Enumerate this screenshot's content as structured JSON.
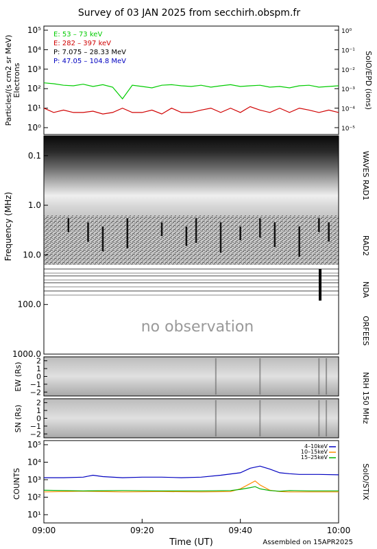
{
  "title": "Survey of 03 JAN 2025 from secchirh.obspm.fr",
  "footer": "Assembled on 15APR2025",
  "xaxis": {
    "label": "Time (UT)",
    "ticks": [
      "09:00",
      "09:20",
      "09:40",
      "10:00"
    ],
    "range": [
      "09:00",
      "10:00"
    ]
  },
  "panels": {
    "epd": {
      "ylabel_left": "Particles/(s cm2 sr MeV)",
      "ylabel_left2": "Electrons",
      "ylabel_right": "SolO/EPD (ions)",
      "left_ticks": [
        "10⁰",
        "10¹",
        "10²",
        "10³",
        "10⁴",
        "10⁵"
      ],
      "right_ticks": [
        "10⁻⁵",
        "10⁻⁴",
        "10⁻³",
        "10⁻²",
        "10⁻¹",
        "10⁰"
      ]
    },
    "radio": {
      "ylabel": "Frequency (MHz)",
      "ticks": [
        "0.1",
        "1.0",
        "10.0",
        "100.0",
        "1000.0"
      ],
      "no_obs": "no observation",
      "right_labels": [
        "WAVES RAD1",
        "RAD2",
        "NDA",
        "ORFEES"
      ]
    },
    "nrh": {
      "ew_label": "EW (Rs)",
      "sn_label": "SN (Rs)",
      "ticks": [
        "2",
        "1",
        "0",
        "−1",
        "−2"
      ],
      "right_label": "NRH 150 MHz"
    },
    "stix": {
      "ylabel": "COUNTS",
      "right_label": "SolO/STIX",
      "ticks": [
        "10¹",
        "10²",
        "10³",
        "10⁴",
        "10⁵"
      ]
    }
  },
  "chart_data": [
    {
      "type": "line",
      "title": "",
      "yscale": "log",
      "ylim": [
        1,
        100000
      ],
      "y2lim": [
        1e-05,
        1
      ],
      "series": [
        {
          "name": "E: 53 – 73 keV",
          "color": "#00cc00",
          "axis": "left",
          "x_minutes": [
            0,
            2,
            4,
            6,
            8,
            10,
            12,
            14,
            16,
            18,
            20,
            22,
            24,
            26,
            28,
            30,
            32,
            34,
            36,
            38,
            40,
            42,
            44,
            46,
            48,
            50,
            52,
            54,
            56,
            58,
            60
          ],
          "values": [
            200,
            180,
            150,
            140,
            170,
            130,
            160,
            120,
            30,
            150,
            130,
            110,
            150,
            160,
            140,
            130,
            150,
            120,
            140,
            160,
            130,
            140,
            150,
            120,
            130,
            110,
            140,
            150,
            120,
            130,
            140
          ]
        },
        {
          "name": "E: 282 – 397 keV",
          "color": "#d00000",
          "axis": "left",
          "x_minutes": [
            0,
            2,
            4,
            6,
            8,
            10,
            12,
            14,
            16,
            18,
            20,
            22,
            24,
            26,
            28,
            30,
            32,
            34,
            36,
            38,
            40,
            42,
            44,
            46,
            48,
            50,
            52,
            54,
            56,
            58,
            60
          ],
          "values": [
            10,
            6,
            8,
            6,
            6,
            7,
            5,
            6,
            10,
            6,
            6,
            8,
            5,
            10,
            6,
            6,
            8,
            10,
            6,
            10,
            6,
            12,
            8,
            6,
            10,
            6,
            10,
            8,
            6,
            8,
            6
          ]
        },
        {
          "name": "P: 7.075 – 28.33 MeV",
          "color": "#000000",
          "axis": "right",
          "x_minutes": [],
          "values": []
        },
        {
          "name": "P: 47.05 – 104.8 MeV",
          "color": "#0000c0",
          "axis": "right",
          "x_minutes": [],
          "values": []
        }
      ]
    },
    {
      "type": "heatmap",
      "ylabel": "Frequency (MHz)",
      "yscale": "log",
      "ylim": [
        0.04,
        1000
      ],
      "instruments": [
        {
          "name": "WAVES RAD1",
          "freq_range": [
            0.04,
            1.0
          ]
        },
        {
          "name": "RAD2",
          "freq_range": [
            1.0,
            16
          ]
        },
        {
          "name": "NDA",
          "freq_range": [
            16,
            80
          ]
        },
        {
          "name": "ORFEES",
          "freq_range": [
            140,
            1000
          ],
          "status": "no observation"
        }
      ]
    },
    {
      "type": "heatmap",
      "title": "NRH 150 MHz",
      "panels": [
        {
          "ylabel": "EW (Rs)",
          "ylim": [
            -2.5,
            2.5
          ]
        },
        {
          "ylabel": "SN (Rs)",
          "ylim": [
            -2.5,
            2.5
          ]
        }
      ]
    },
    {
      "type": "line",
      "ylabel": "COUNTS",
      "yscale": "log",
      "ylim": [
        10,
        100000
      ],
      "series": [
        {
          "name": "4–10keV",
          "color": "#0000c0",
          "x_minutes": [
            0,
            4,
            8,
            10,
            12,
            16,
            20,
            24,
            28,
            32,
            36,
            40,
            42,
            44,
            46,
            48,
            50,
            52,
            56,
            60
          ],
          "values": [
            1300,
            1300,
            1400,
            1800,
            1500,
            1300,
            1400,
            1400,
            1300,
            1400,
            1800,
            2500,
            4500,
            6000,
            4000,
            2500,
            2200,
            2000,
            2000,
            1900
          ]
        },
        {
          "name": "10–15keV",
          "color": "#ff8c00",
          "x_minutes": [
            0,
            8,
            16,
            24,
            32,
            38,
            40,
            42,
            43,
            44,
            46,
            48,
            50,
            54,
            60
          ],
          "values": [
            200,
            220,
            200,
            210,
            200,
            210,
            300,
            600,
            850,
            500,
            250,
            210,
            200,
            200,
            200
          ]
        },
        {
          "name": "15–25keV",
          "color": "#00b000",
          "x_minutes": [
            0,
            8,
            16,
            24,
            32,
            38,
            40,
            42,
            43,
            44,
            46,
            48,
            50,
            54,
            60
          ],
          "values": [
            250,
            230,
            240,
            230,
            230,
            240,
            280,
            350,
            400,
            300,
            240,
            220,
            240,
            230,
            230
          ]
        }
      ]
    }
  ],
  "colors": {
    "epd_green": "#00cc00",
    "epd_red": "#d00000",
    "epd_black": "#000000",
    "epd_blue": "#0000c0",
    "stix_blue": "#0000c0",
    "stix_orange": "#ff8c00",
    "stix_green": "#00b000"
  }
}
